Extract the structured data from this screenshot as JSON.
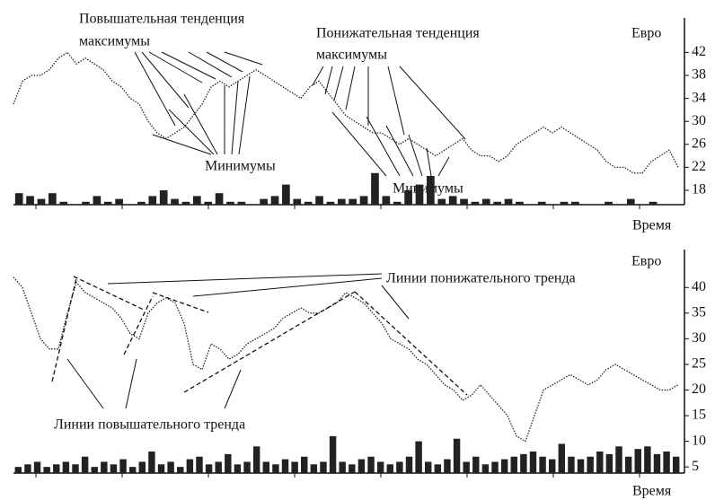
{
  "chart_data": [
    {
      "type": "line",
      "annotations": [
        "Повышательная тенденция",
        "максимумы",
        "Понижательная тенденция",
        "максимумы",
        "Минимумы",
        "Минимумы"
      ],
      "ylabel": "Евро",
      "xlabel": "Время",
      "ylim": [
        15.5,
        48
      ],
      "yticks": [
        18,
        22,
        26,
        30,
        34,
        38,
        42
      ],
      "color": "#222",
      "price": [
        33,
        37,
        38,
        38,
        39,
        41,
        42,
        40,
        41,
        40,
        39,
        37,
        36,
        34,
        33,
        30,
        28,
        27,
        28,
        29,
        31,
        33,
        36,
        37,
        36,
        37,
        38,
        39,
        38,
        37,
        36,
        35,
        34,
        36,
        37,
        35,
        33,
        31,
        30,
        29,
        28,
        28,
        27,
        26,
        27,
        26,
        25,
        24,
        25,
        26,
        27,
        25,
        24,
        24,
        23,
        24,
        26,
        27,
        28,
        29,
        28,
        29,
        28,
        27,
        26,
        25,
        23,
        22,
        22,
        21,
        21,
        23,
        24,
        25,
        22
      ],
      "volume": [
        17.5,
        17,
        16.5,
        17.5,
        16,
        15.5,
        16,
        17,
        16,
        16.5,
        15.5,
        16,
        17,
        18,
        16.5,
        16,
        17,
        16,
        17.5,
        16,
        16,
        15.5,
        16.5,
        17,
        19,
        16.5,
        16,
        17,
        16,
        16.5,
        16.5,
        17,
        21,
        17,
        16,
        18,
        19,
        20.5,
        16.5,
        17,
        16.5,
        16,
        16.5,
        16,
        16.5,
        16,
        15.5,
        16,
        15.5,
        16,
        16,
        15.5,
        15.5,
        16,
        15.5,
        16.5,
        15.5,
        16,
        15.5,
        15.5
      ]
    },
    {
      "type": "line",
      "annotations": [
        "Линии понижательного тренда",
        "Линии повышательного тренда"
      ],
      "ylabel": "Евро",
      "xlabel": "Время",
      "ylim": [
        3.8,
        47.4
      ],
      "yticks": [
        5,
        10,
        15,
        20,
        25,
        30,
        35,
        40
      ],
      "color": "#222",
      "price": [
        42,
        40,
        35,
        30,
        28,
        28,
        35,
        41,
        39,
        38,
        37,
        36,
        34,
        31,
        30,
        35,
        37,
        38,
        37,
        33,
        25,
        24,
        29,
        28,
        26,
        27,
        29,
        30,
        31,
        32,
        34,
        35,
        36,
        35,
        35,
        36,
        37,
        39,
        38,
        37,
        35,
        33,
        30,
        29,
        28,
        26,
        25,
        23,
        21,
        20,
        18,
        19,
        21,
        19,
        17,
        15,
        11,
        10,
        15,
        20,
        21,
        22,
        23,
        22,
        21,
        22,
        24,
        25,
        24,
        23,
        22,
        21,
        20,
        20,
        21
      ],
      "volume": [
        5,
        5.5,
        6,
        5,
        5.5,
        6,
        5.5,
        7,
        5,
        6,
        5.5,
        6.5,
        5,
        6,
        8,
        5.5,
        6,
        5,
        6.5,
        7,
        5.5,
        6,
        7.5,
        5.5,
        6,
        9,
        6,
        5.5,
        6.5,
        6,
        7,
        5.5,
        6,
        11,
        6,
        5.5,
        6.5,
        7,
        6,
        5.5,
        6,
        7,
        10,
        6,
        5.5,
        6.5,
        10.5,
        6,
        7,
        5.5,
        6,
        6.5,
        7,
        7.5,
        8,
        7,
        6.5,
        9.5,
        7,
        6.5,
        7,
        8,
        7.5,
        9,
        7,
        8.5,
        9,
        7.5,
        8,
        7
      ]
    }
  ]
}
